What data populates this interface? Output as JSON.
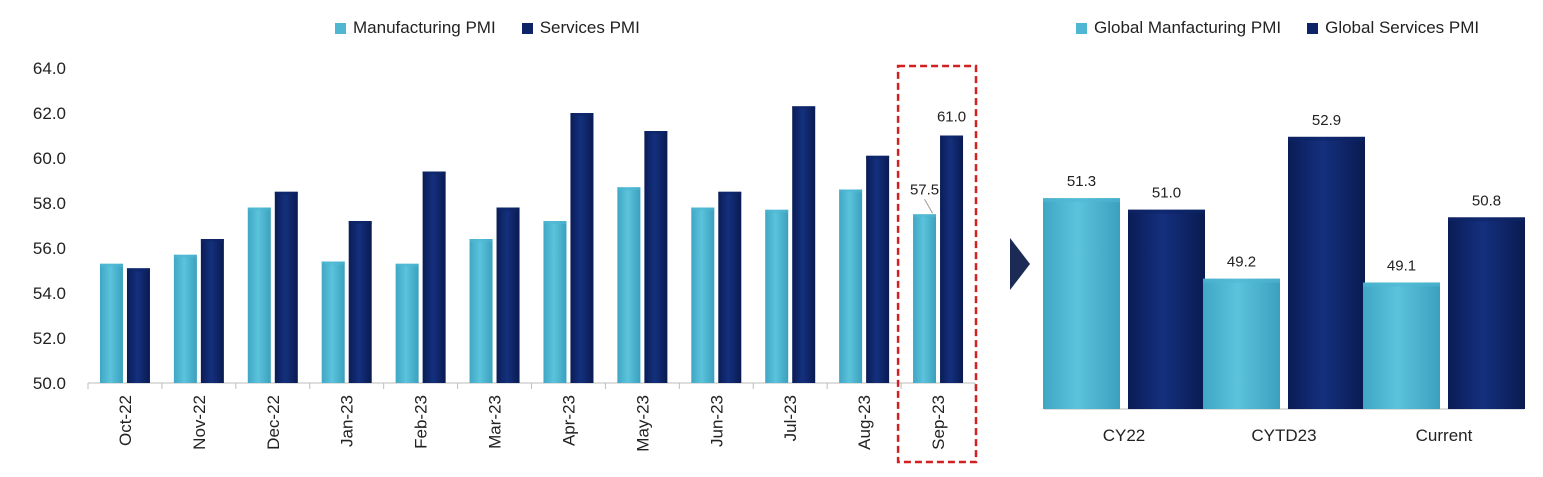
{
  "colors": {
    "manufacturing": "#4fb7d2",
    "services": "#0e2468",
    "highlight": "#d21f1f",
    "axis": "#bdbdbd",
    "text": "#222222"
  },
  "legend_left": {
    "manufacturing": "Manufacturing PMI",
    "services": "Services PMI"
  },
  "legend_right": {
    "manufacturing": "Global Manfacturing PMI",
    "services": "Global Services PMI"
  },
  "chart_data": [
    {
      "type": "bar",
      "categories": [
        "Oct-22",
        "Nov-22",
        "Dec-22",
        "Jan-23",
        "Feb-23",
        "Mar-23",
        "Apr-23",
        "May-23",
        "Jun-23",
        "Jul-23",
        "Aug-23",
        "Sep-23"
      ],
      "series": [
        {
          "name": "Manufacturing PMI",
          "values": [
            55.3,
            55.7,
            57.8,
            55.4,
            55.3,
            56.4,
            57.2,
            58.7,
            57.8,
            57.7,
            58.6,
            57.5
          ]
        },
        {
          "name": "Services PMI",
          "values": [
            55.1,
            56.4,
            58.5,
            57.2,
            59.4,
            57.8,
            62.0,
            61.2,
            58.5,
            62.3,
            60.1,
            61.0
          ]
        }
      ],
      "ylim": [
        50,
        64
      ],
      "yticks": [
        "50.0",
        "52.0",
        "54.0",
        "56.0",
        "58.0",
        "60.0",
        "62.0",
        "64.0"
      ],
      "data_labels": [
        {
          "category": "Sep-23",
          "manufacturing": "57.5",
          "services": "61.0"
        }
      ],
      "highlight_category": "Sep-23",
      "legend": "top"
    },
    {
      "type": "bar",
      "categories": [
        "CY22",
        "CYTD23",
        "Current"
      ],
      "series": [
        {
          "name": "Global Manfacturing PMI",
          "values": [
            51.3,
            49.2,
            49.1
          ]
        },
        {
          "name": "Global Services PMI",
          "values": [
            51.0,
            52.9,
            50.8
          ]
        }
      ],
      "data_labels": {
        "manufacturing": [
          "51.3",
          "49.2",
          "49.1"
        ],
        "services": [
          "51.0",
          "52.9",
          "50.8"
        ]
      },
      "legend": "top"
    }
  ]
}
